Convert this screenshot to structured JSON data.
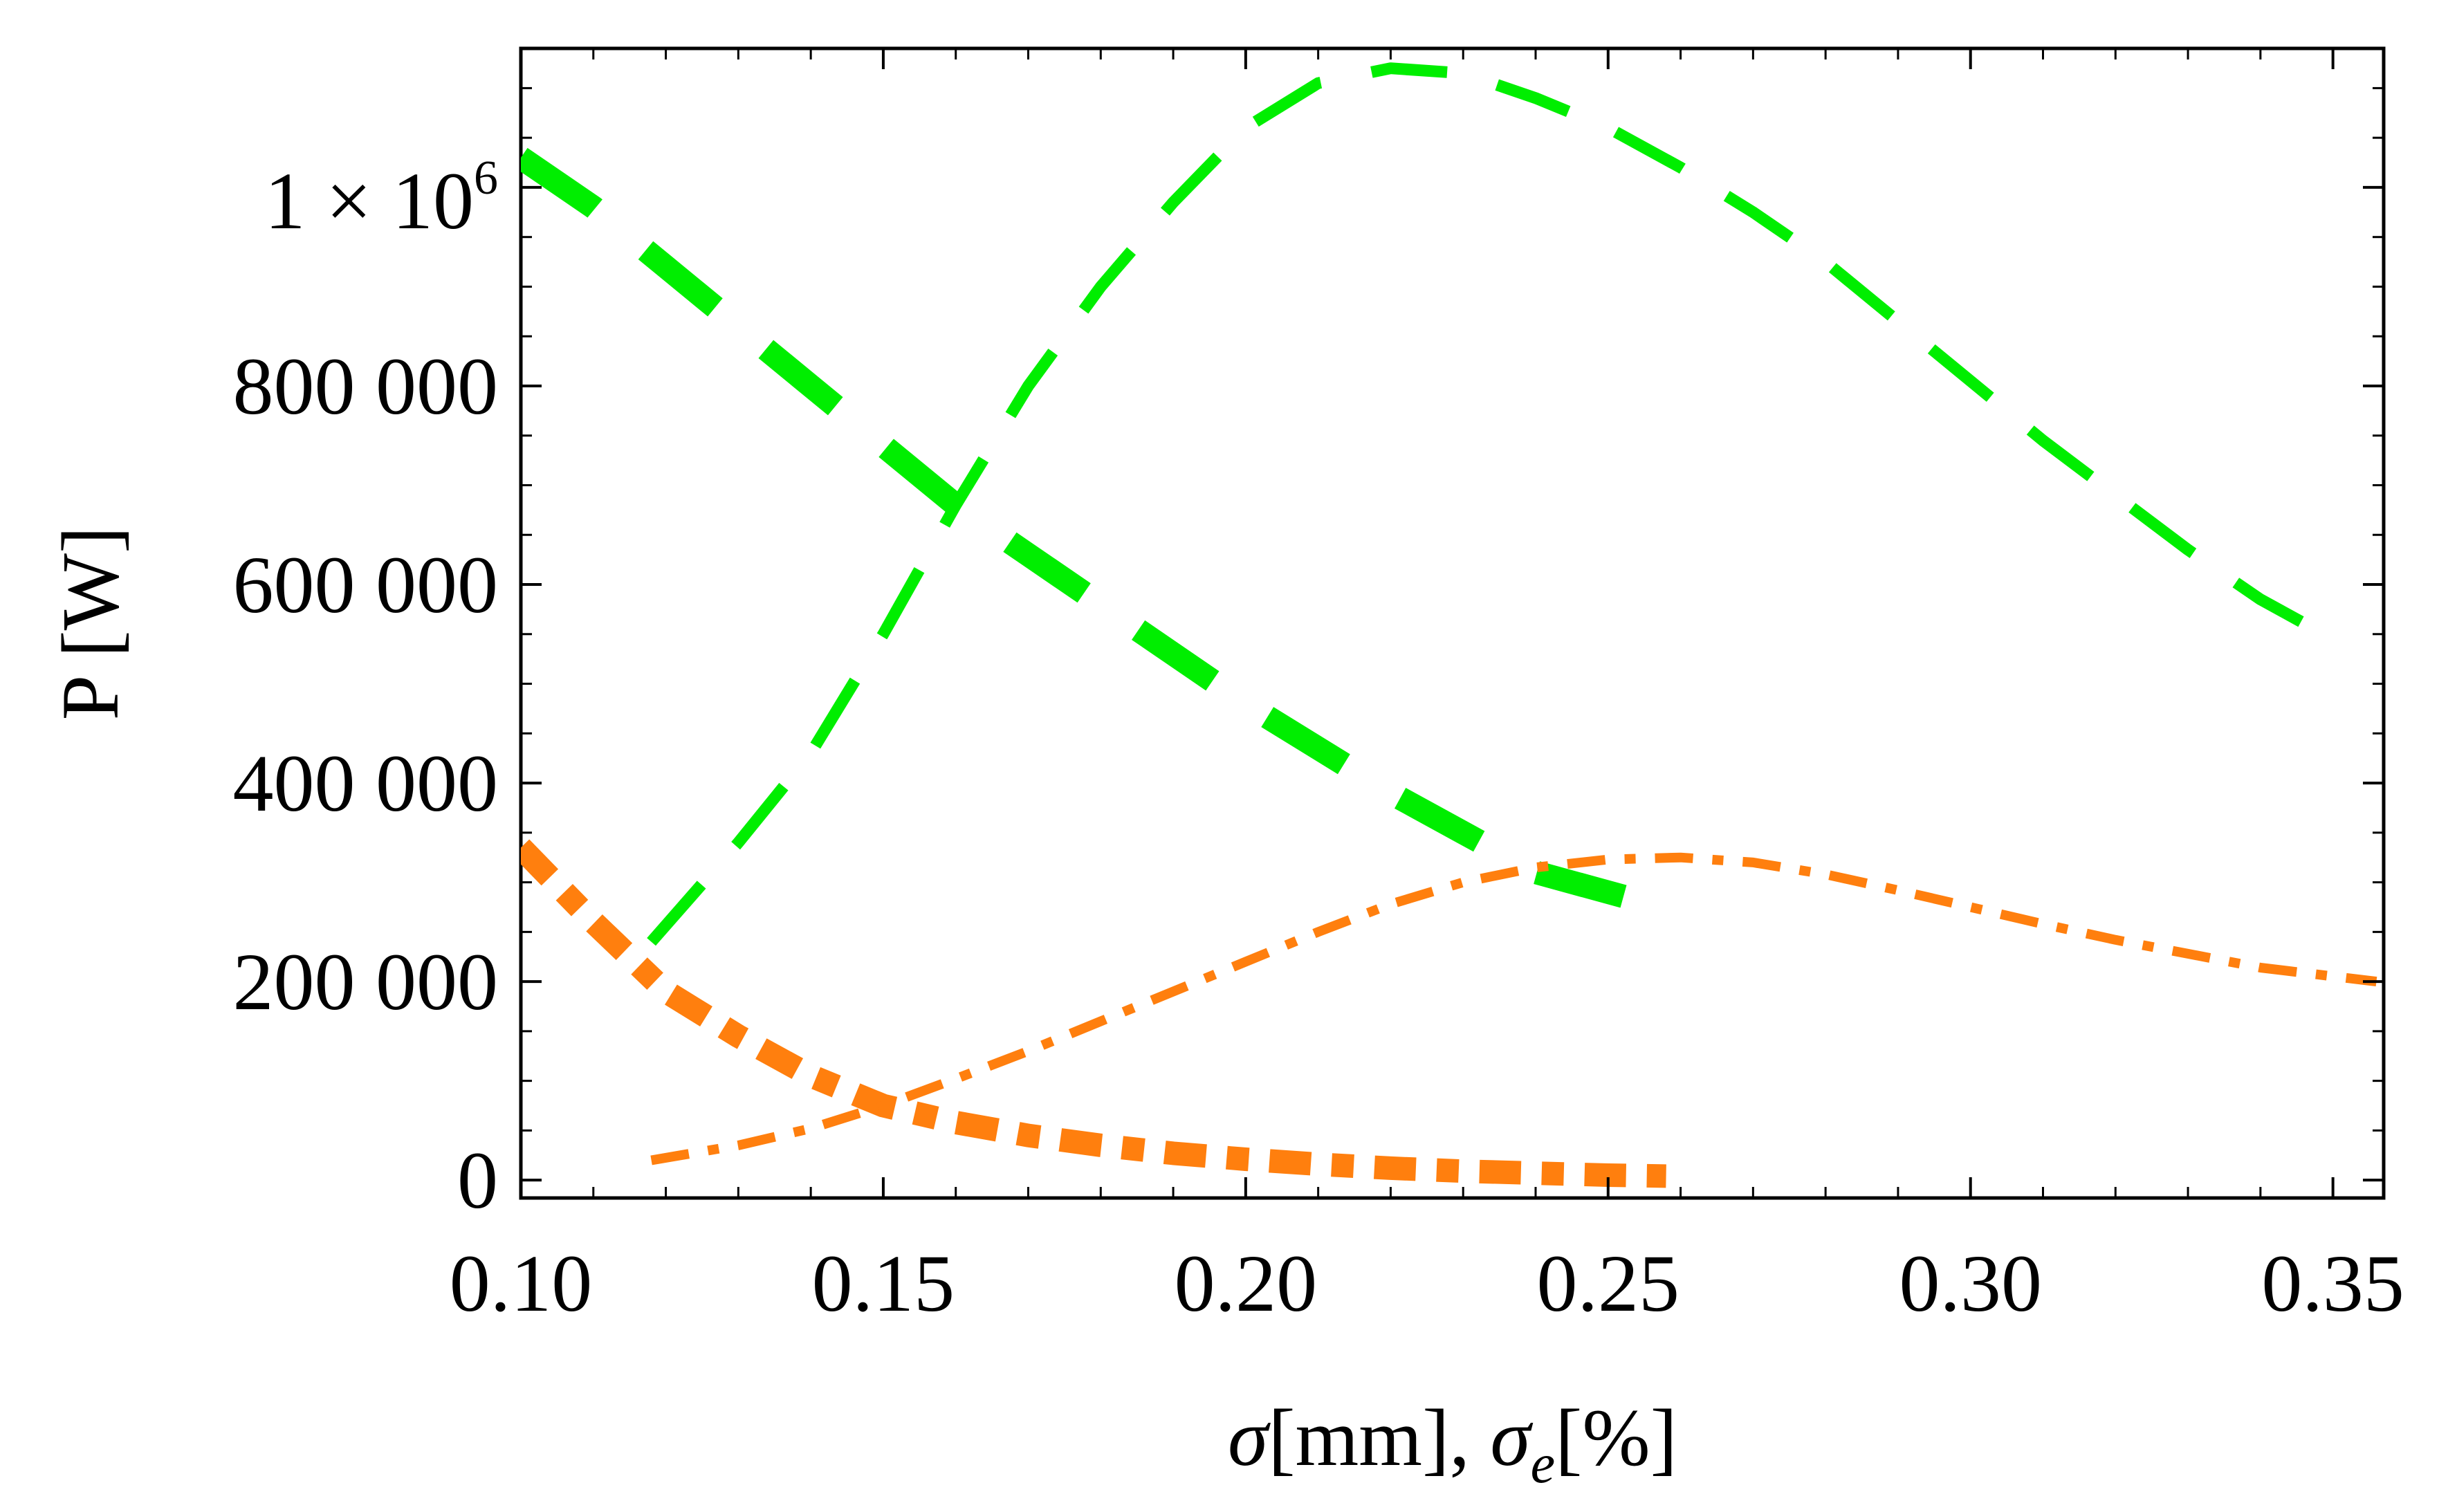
{
  "chart_data": {
    "type": "line",
    "title": "",
    "xlabel": {
      "sigma": "σ",
      "unit1": "[mm], ",
      "sigma_e": "σ",
      "sub": "e",
      "unit2": "[%]"
    },
    "ylabel": "P [W]",
    "xlim": [
      0.1,
      0.357
    ],
    "ylim": [
      -18000,
      1140000
    ],
    "x_ticks": [
      0.1,
      0.15,
      0.2,
      0.25,
      0.3,
      0.35
    ],
    "x_tick_labels": [
      "0.10",
      "0.15",
      "0.20",
      "0.25",
      "0.30",
      "0.35"
    ],
    "y_ticks": [
      0,
      200000,
      400000,
      600000,
      800000,
      1000000
    ],
    "y_tick_labels": [
      "0",
      "200 000",
      "400 000",
      "600 000",
      "800 000",
      ""
    ],
    "y_top_label": {
      "base": "1 × 10",
      "exp": "6"
    },
    "grid": false,
    "series": [
      {
        "name": "green-thick-dashed",
        "color": "#00ee00",
        "style": "dashed-thick",
        "x": [
          0.1,
          0.11,
          0.12,
          0.13,
          0.14,
          0.15,
          0.16,
          0.17,
          0.18,
          0.19,
          0.2,
          0.21,
          0.22,
          0.23,
          0.24,
          0.255
        ],
        "y": [
          1030000,
          980000,
          920000,
          860000,
          800000,
          740000,
          680000,
          630000,
          580000,
          530000,
          480000,
          435000,
          390000,
          350000,
          310000,
          280000
        ]
      },
      {
        "name": "green-thin-dashed",
        "color": "#00ee00",
        "style": "dashed-thin",
        "x": [
          0.118,
          0.13,
          0.14,
          0.15,
          0.16,
          0.17,
          0.18,
          0.19,
          0.2,
          0.21,
          0.22,
          0.23,
          0.24,
          0.25,
          0.26,
          0.27,
          0.28,
          0.29,
          0.3,
          0.31,
          0.32,
          0.33,
          0.34,
          0.35
        ],
        "y": [
          240000,
          340000,
          430000,
          550000,
          680000,
          800000,
          900000,
          985000,
          1060000,
          1105000,
          1120000,
          1115000,
          1090000,
          1060000,
          1020000,
          975000,
          925000,
          865000,
          805000,
          745000,
          690000,
          635000,
          585000,
          545000
        ]
      },
      {
        "name": "orange-thick-dashdot",
        "color": "#ff7f0e",
        "style": "dashdot-thick",
        "x": [
          0.1,
          0.11,
          0.12,
          0.13,
          0.14,
          0.15,
          0.16,
          0.17,
          0.18,
          0.19,
          0.2,
          0.21,
          0.22,
          0.23,
          0.24,
          0.25,
          0.258
        ],
        "y": [
          335000,
          260000,
          190000,
          145000,
          105000,
          75000,
          58000,
          45000,
          35000,
          27000,
          21000,
          16000,
          12000,
          9000,
          7000,
          5000,
          4000
        ]
      },
      {
        "name": "orange-thin-dashdot",
        "color": "#ff7f0e",
        "style": "dashdot-thin",
        "x": [
          0.118,
          0.13,
          0.14,
          0.15,
          0.16,
          0.17,
          0.18,
          0.19,
          0.2,
          0.21,
          0.22,
          0.23,
          0.24,
          0.25,
          0.26,
          0.27,
          0.28,
          0.29,
          0.3,
          0.31,
          0.32,
          0.33,
          0.34,
          0.356
        ],
        "y": [
          20000,
          35000,
          52000,
          75000,
          102000,
          130000,
          160000,
          190000,
          220000,
          250000,
          278000,
          300000,
          315000,
          323000,
          325000,
          320000,
          308000,
          292000,
          275000,
          258000,
          242000,
          228000,
          214000,
          200000
        ]
      }
    ]
  }
}
